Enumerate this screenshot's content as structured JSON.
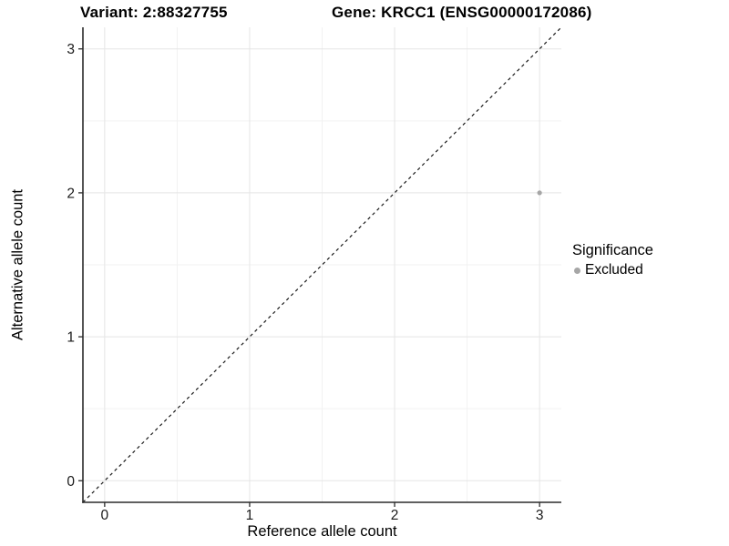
{
  "chart_data": {
    "type": "scatter",
    "titles": {
      "variant": "Variant: 2:88327755",
      "gene": "Gene: KRCC1 (ENSG00000172086)"
    },
    "xlabel": "Reference allele count",
    "ylabel": "Alternative allele count",
    "xlim": [
      -0.15,
      3.15
    ],
    "ylim": [
      -0.15,
      3.15
    ],
    "xticks": [
      0,
      1,
      2,
      3
    ],
    "yticks": [
      0,
      1,
      2,
      3
    ],
    "minor_ticks_x": [
      0.5,
      1.5,
      2.5
    ],
    "minor_ticks_y": [
      0.5,
      1.5,
      2.5
    ],
    "grid": "major and minor gridlines, no panel border, axis lines left and bottom only",
    "series": [
      {
        "name": "Excluded",
        "color": "#a6a6a6",
        "points": [
          {
            "x": 3,
            "y": 2
          }
        ]
      }
    ],
    "identity_line": {
      "slope": 1,
      "intercept": 0,
      "style": "dashed",
      "color": "#1a1a1a"
    },
    "legend": {
      "title": "Significance",
      "position": "right",
      "entries": [
        {
          "label": "Excluded",
          "color": "#a6a6a6"
        }
      ]
    },
    "colors": {
      "background": "#ffffff",
      "grid_major": "#e5e5e5",
      "grid_minor": "#f2f2f2",
      "axis_line": "#2b2b2b",
      "tick_text": "#1a1a1a"
    }
  }
}
